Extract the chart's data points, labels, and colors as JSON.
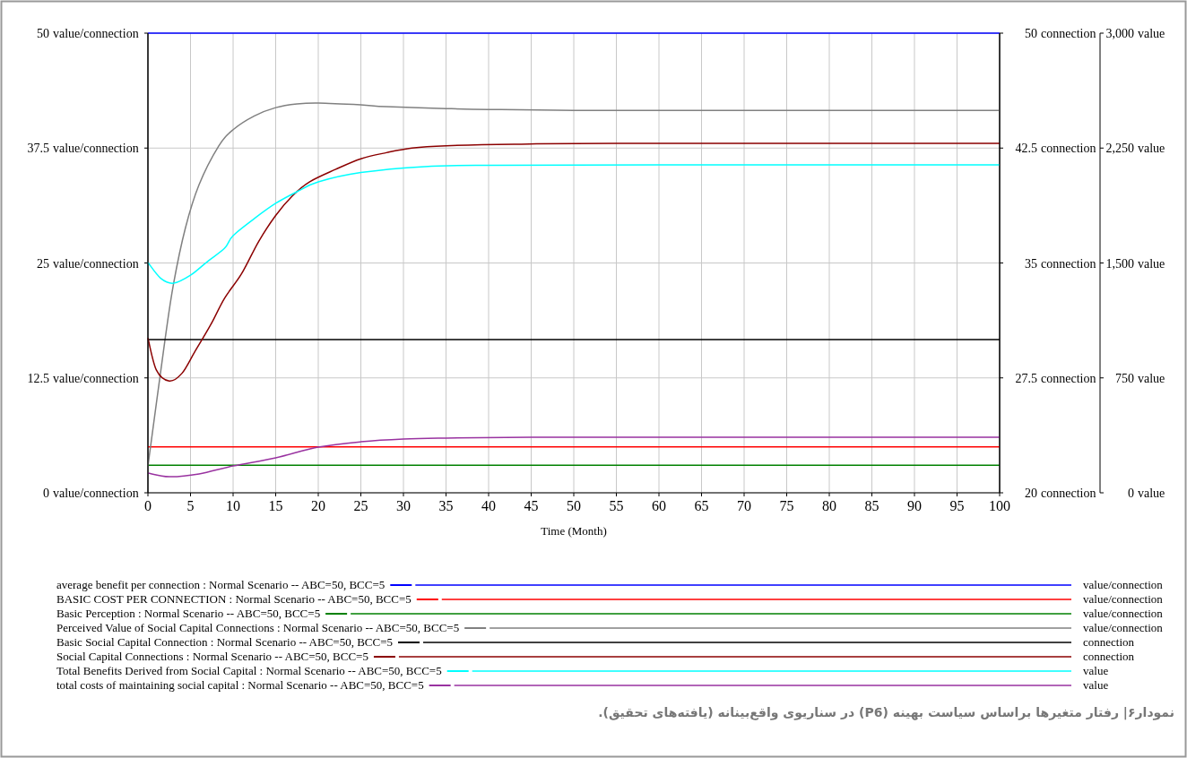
{
  "chart_data": {
    "type": "line",
    "xlabel": "Time (Month)",
    "xlim": [
      0,
      100
    ],
    "xticks": [
      0,
      5,
      10,
      15,
      20,
      25,
      30,
      35,
      40,
      45,
      50,
      55,
      60,
      65,
      70,
      75,
      80,
      85,
      90,
      95,
      100
    ],
    "ylabel": "value/connection",
    "ylim": [
      0,
      50
    ],
    "yticks": [
      0,
      12.5,
      25,
      37.5,
      50
    ],
    "y2label": "connection",
    "y2lim": [
      20,
      50
    ],
    "y2ticks": [
      20,
      27.5,
      35,
      42.5,
      50
    ],
    "y3label": "value",
    "y3lim": [
      0,
      3000
    ],
    "y3ticks": [
      0,
      {
        "value": 750,
        "label": "750"
      },
      {
        "value": 1500,
        "label": "1,500"
      },
      {
        "value": 2250,
        "label": "2,250"
      },
      {
        "value": 3000,
        "label": "3,000"
      }
    ],
    "grid": true,
    "legend": "bottom",
    "series": [
      {
        "name": "average benefit per connection : Normal Scenario -- ABC=50, BCC=5",
        "color": "#0000ff",
        "axis": "y",
        "x": [
          0,
          100
        ],
        "values": [
          50,
          50
        ]
      },
      {
        "name": "BASIC COST PER CONNECTION : Normal Scenario -- ABC=50, BCC=5",
        "color": "#ff0000",
        "axis": "y",
        "x": [
          0,
          100
        ],
        "values": [
          5,
          5
        ]
      },
      {
        "name": "Basic Perception : Normal Scenario -- ABC=50, BCC=5",
        "color": "#008000",
        "axis": "y",
        "x": [
          0,
          100
        ],
        "values": [
          3,
          3
        ]
      },
      {
        "name": "Perceived Value of Social Capital Connections : Normal Scenario -- ABC=50, BCC=5",
        "color": "#808080",
        "axis": "y",
        "x": [
          0,
          2,
          3,
          4.4,
          6,
          8.3,
          10,
          12.5,
          15,
          17.5,
          20,
          25,
          28,
          35,
          40,
          50,
          70,
          100
        ],
        "values": [
          2.9,
          16.6,
          22.7,
          28.8,
          33.5,
          37.7,
          39.5,
          41.0,
          41.9,
          42.3,
          42.4,
          42.2,
          42.0,
          41.8,
          41.7,
          41.6,
          41.6,
          41.6
        ]
      },
      {
        "name": "Basic Social Capital Connection : Normal Scenario -- ABC=50, BCC=5",
        "color": "#000000",
        "axis": "y2",
        "x": [
          0,
          100
        ],
        "values": [
          30,
          30
        ]
      },
      {
        "name": "Social Capital Connections : Normal Scenario -- ABC=50, BCC=5",
        "color": "#8b0000",
        "axis": "y2",
        "x": [
          0,
          1,
          2.5,
          4,
          5.5,
          7.4,
          9,
          11,
          13,
          15,
          17,
          19,
          22,
          25,
          28,
          31,
          35,
          43,
          55,
          100
        ],
        "values": [
          30.1,
          28.0,
          27.3,
          27.8,
          29.2,
          31.0,
          32.7,
          34.3,
          36.4,
          38.1,
          39.4,
          40.3,
          41.1,
          41.8,
          42.2,
          42.5,
          42.65,
          42.75,
          42.8,
          42.8
        ]
      },
      {
        "name": "Total Benefits Derived from Social Capital : Normal Scenario -- ABC=50, BCC=5",
        "color": "#00ffff",
        "axis": "y3",
        "x": [
          0,
          1.5,
          3,
          5,
          7,
          9,
          10,
          12.5,
          15,
          17.5,
          20,
          25,
          32.5,
          40,
          60,
          100
        ],
        "values": [
          1503,
          1400,
          1368,
          1420,
          1510,
          1596,
          1678,
          1790,
          1889,
          1965,
          2029,
          2090,
          2129,
          2138,
          2140,
          2140
        ]
      },
      {
        "name": "total costs of maintaining social capital : Normal Scenario -- ABC=50, BCC=5",
        "color": "#9932a0",
        "axis": "y3",
        "x": [
          0,
          2.5,
          6,
          10,
          15,
          20,
          25,
          30,
          35,
          45,
          60,
          100
        ],
        "values": [
          129,
          105,
          123,
          175,
          228,
          298,
          333,
          351,
          357,
          362,
          363,
          363
        ]
      }
    ],
    "annotations": [
      "نمودار۶| رفتار متغیرها براساس سیاست بهینه (P6) در سناریوی واقع‌بینانه (یافته‌های تحقیق)."
    ]
  }
}
